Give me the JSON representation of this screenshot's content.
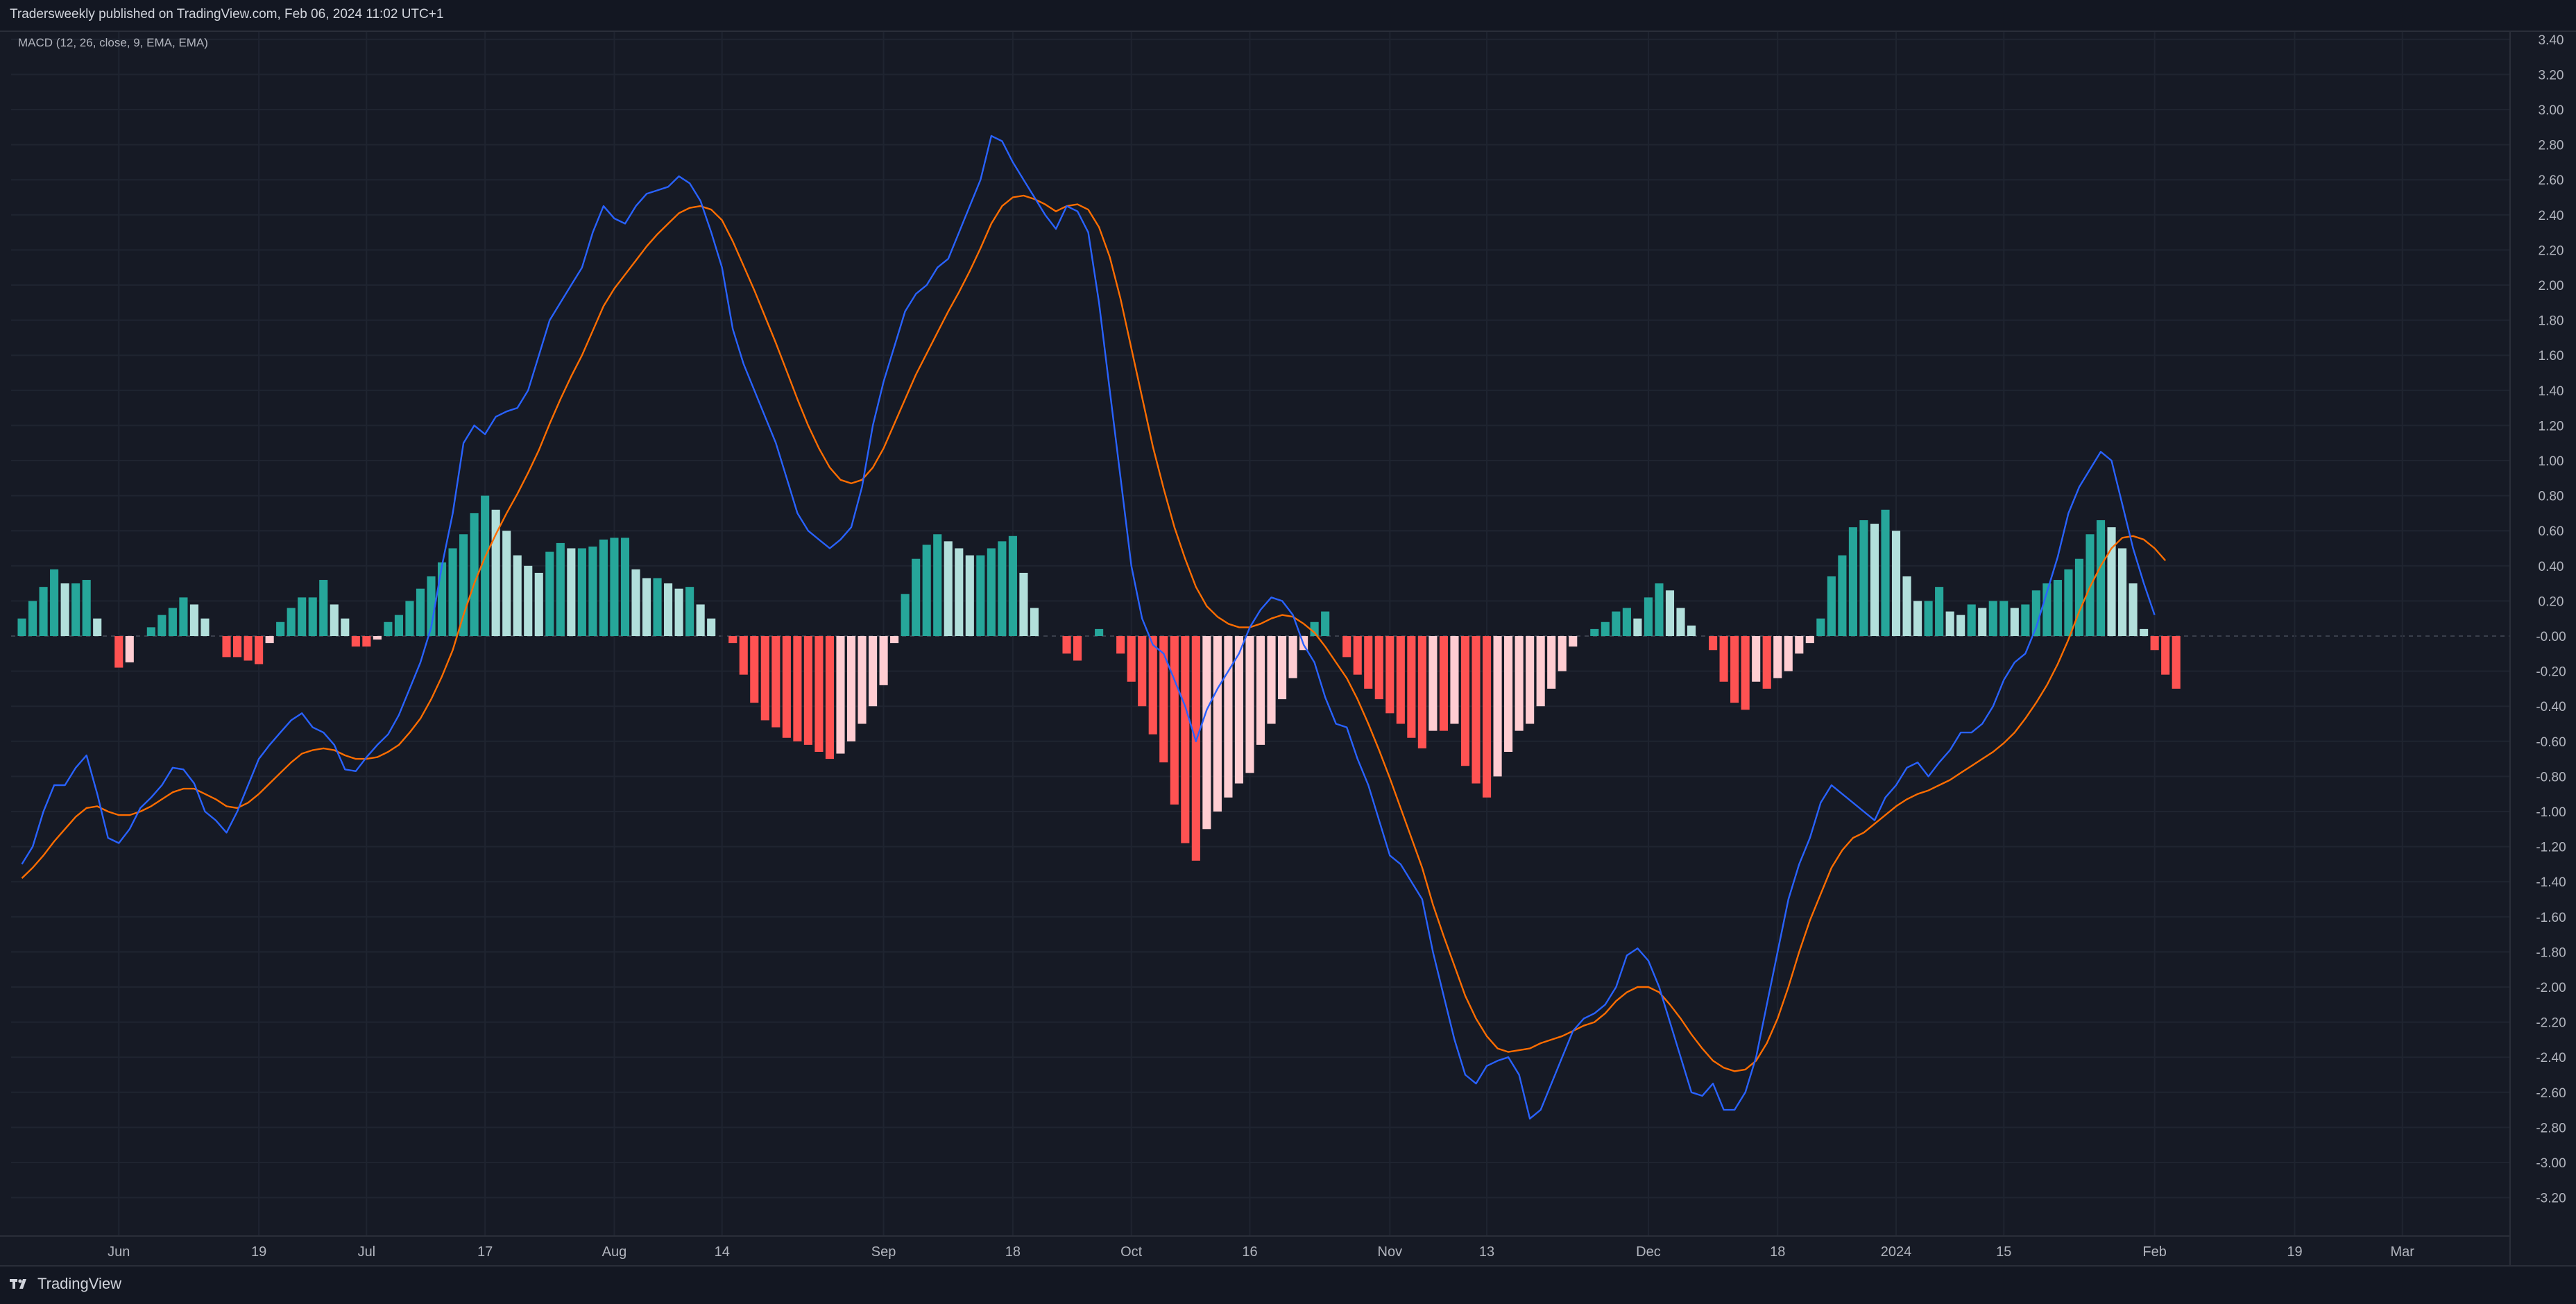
{
  "header": {
    "published": "Tradersweekly published on TradingView.com, Feb 06, 2024 11:02 UTC+1"
  },
  "indicator": {
    "label": "MACD (12, 26, close, 9, EMA, EMA)"
  },
  "footer": {
    "brand": "TradingView"
  },
  "colors": {
    "background": "#161a25",
    "grid": "#1f2430",
    "macd_line": "#2962ff",
    "signal_line": "#ff6d00",
    "hist_pos_strong": "#26a69a",
    "hist_pos_weak": "#b2dfdb",
    "hist_neg_strong": "#ff5252",
    "hist_neg_weak": "#ffcdd2",
    "axis_text": "#b2b5be"
  },
  "chart_data": {
    "type": "line",
    "title": "",
    "ylim": [
      -3.4,
      3.4
    ],
    "y_ticks": [
      "3.40",
      "3.20",
      "3.00",
      "2.80",
      "2.60",
      "2.40",
      "2.20",
      "2.00",
      "1.80",
      "1.60",
      "1.40",
      "1.20",
      "1.00",
      "0.80",
      "0.60",
      "0.40",
      "0.20",
      "-0.00",
      "-0.20",
      "-0.40",
      "-0.60",
      "-0.80",
      "-1.00",
      "-1.20",
      "-1.40",
      "-1.60",
      "-1.80",
      "-2.00",
      "-2.20",
      "-2.40",
      "-2.60",
      "-2.80",
      "-3.00",
      "-3.20"
    ],
    "y_tick_values": [
      3.4,
      3.2,
      3.0,
      2.8,
      2.6,
      2.4,
      2.2,
      2.0,
      1.8,
      1.6,
      1.4,
      1.2,
      1.0,
      0.8,
      0.6,
      0.4,
      0.2,
      0,
      -0.2,
      -0.4,
      -0.6,
      -0.8,
      -1.0,
      -1.2,
      -1.4,
      -1.6,
      -1.8,
      -2.0,
      -2.2,
      -2.4,
      -2.6,
      -2.8,
      -3.0,
      -3.2
    ],
    "x_ticks": [
      "Jun",
      "19",
      "Jul",
      "17",
      "Aug",
      "14",
      "Sep",
      "18",
      "Oct",
      "16",
      "Nov",
      "13",
      "Dec",
      "18",
      "2024",
      "15",
      "Feb",
      "19",
      "Mar"
    ],
    "x_tick_index": [
      9,
      22,
      32,
      43,
      55,
      65,
      80,
      92,
      103,
      114,
      127,
      136,
      151,
      163,
      174,
      184,
      198,
      211,
      221
    ],
    "x_range": [
      -1,
      231
    ],
    "grid": true,
    "series": [
      {
        "name": "",
        "kind": "macd",
        "values": [
          -1.3,
          -1.2,
          -1.0,
          -0.85,
          -0.85,
          -0.75,
          -0.68,
          -0.9,
          -1.15,
          -1.18,
          -1.1,
          -0.98,
          -0.92,
          -0.85,
          -0.75,
          -0.76,
          -0.84,
          -1.0,
          -1.05,
          -1.12,
          -1.0,
          -0.85,
          -0.7,
          -0.62,
          -0.55,
          -0.48,
          -0.44,
          -0.52,
          -0.55,
          -0.62,
          -0.76,
          -0.77,
          -0.69,
          -0.62,
          -0.56,
          -0.45,
          -0.3,
          -0.15,
          0.05,
          0.4,
          0.7,
          1.1,
          1.2,
          1.15,
          1.25,
          1.28,
          1.3,
          1.4,
          1.6,
          1.8,
          1.9,
          2.0,
          2.1,
          2.3,
          2.45,
          2.38,
          2.35,
          2.45,
          2.52,
          2.54,
          2.56,
          2.62,
          2.58,
          2.48,
          2.3,
          2.1,
          1.75,
          1.55,
          1.4,
          1.25,
          1.1,
          0.9,
          0.7,
          0.6,
          0.55,
          0.5,
          0.55,
          0.62,
          0.85,
          1.2,
          1.45,
          1.65,
          1.85,
          1.95,
          2.0,
          2.1,
          2.15,
          2.3,
          2.45,
          2.6,
          2.85,
          2.82,
          2.7,
          2.6,
          2.5,
          2.4,
          2.32,
          2.45,
          2.42,
          2.3,
          1.9,
          1.4,
          0.9,
          0.4,
          0.1,
          -0.05,
          -0.1,
          -0.25,
          -0.4,
          -0.6,
          -0.42,
          -0.3,
          -0.2,
          -0.1,
          0.05,
          0.15,
          0.22,
          0.2,
          0.12,
          -0.05,
          -0.15,
          -0.35,
          -0.5,
          -0.52,
          -0.7,
          -0.85,
          -1.05,
          -1.25,
          -1.3,
          -1.4,
          -1.5,
          -1.8,
          -2.05,
          -2.3,
          -2.5,
          -2.55,
          -2.45,
          -2.42,
          -2.4,
          -2.5,
          -2.75,
          -2.7,
          -2.55,
          -2.4,
          -2.25,
          -2.18,
          -2.15,
          -2.1,
          -2.0,
          -1.82,
          -1.78,
          -1.85,
          -2.0,
          -2.2,
          -2.4,
          -2.6,
          -2.62,
          -2.55,
          -2.7,
          -2.7,
          -2.6,
          -2.4,
          -2.1,
          -1.8,
          -1.5,
          -1.3,
          -1.15,
          -0.95,
          -0.85,
          -0.9,
          -0.95,
          -1.0,
          -1.05,
          -0.92,
          -0.85,
          -0.75,
          -0.72,
          -0.8,
          -0.72,
          -0.65,
          -0.55,
          -0.55,
          -0.5,
          -0.4,
          -0.25,
          -0.15,
          -0.1,
          0.05,
          0.25,
          0.45,
          0.7,
          0.85,
          0.95,
          1.05,
          1.0,
          0.75,
          0.5,
          0.3,
          0.12
        ]
      },
      {
        "name": "",
        "kind": "signal",
        "values": [
          -1.38,
          -1.32,
          -1.25,
          -1.17,
          -1.1,
          -1.03,
          -0.98,
          -0.97,
          -1.0,
          -1.02,
          -1.02,
          -1.0,
          -0.97,
          -0.93,
          -0.89,
          -0.87,
          -0.87,
          -0.9,
          -0.93,
          -0.97,
          -0.98,
          -0.95,
          -0.9,
          -0.84,
          -0.78,
          -0.72,
          -0.67,
          -0.65,
          -0.64,
          -0.65,
          -0.68,
          -0.7,
          -0.7,
          -0.69,
          -0.66,
          -0.62,
          -0.55,
          -0.47,
          -0.36,
          -0.23,
          -0.08,
          0.12,
          0.3,
          0.45,
          0.58,
          0.7,
          0.81,
          0.93,
          1.06,
          1.21,
          1.35,
          1.48,
          1.6,
          1.74,
          1.88,
          1.98,
          2.06,
          2.14,
          2.22,
          2.29,
          2.35,
          2.41,
          2.44,
          2.45,
          2.43,
          2.37,
          2.25,
          2.11,
          1.97,
          1.82,
          1.67,
          1.51,
          1.35,
          1.2,
          1.07,
          0.96,
          0.89,
          0.87,
          0.89,
          0.96,
          1.07,
          1.21,
          1.35,
          1.49,
          1.61,
          1.73,
          1.85,
          1.96,
          2.08,
          2.21,
          2.35,
          2.45,
          2.5,
          2.51,
          2.49,
          2.46,
          2.42,
          2.45,
          2.46,
          2.43,
          2.33,
          2.16,
          1.92,
          1.64,
          1.36,
          1.08,
          0.84,
          0.62,
          0.44,
          0.28,
          0.17,
          0.11,
          0.07,
          0.05,
          0.05,
          0.07,
          0.1,
          0.12,
          0.11,
          0.07,
          0.02,
          -0.06,
          -0.15,
          -0.24,
          -0.36,
          -0.5,
          -0.65,
          -0.81,
          -0.98,
          -1.15,
          -1.32,
          -1.53,
          -1.71,
          -1.88,
          -2.05,
          -2.18,
          -2.28,
          -2.35,
          -2.37,
          -2.36,
          -2.35,
          -2.32,
          -2.3,
          -2.28,
          -2.25,
          -2.22,
          -2.2,
          -2.15,
          -2.08,
          -2.03,
          -2.0,
          -2.0,
          -2.03,
          -2.1,
          -2.18,
          -2.27,
          -2.35,
          -2.42,
          -2.46,
          -2.48,
          -2.47,
          -2.42,
          -2.32,
          -2.18,
          -2.0,
          -1.8,
          -1.62,
          -1.47,
          -1.32,
          -1.22,
          -1.15,
          -1.12,
          -1.07,
          -1.02,
          -0.97,
          -0.93,
          -0.9,
          -0.88,
          -0.85,
          -0.82,
          -0.78,
          -0.74,
          -0.7,
          -0.66,
          -0.61,
          -0.55,
          -0.47,
          -0.38,
          -0.28,
          -0.16,
          -0.02,
          0.14,
          0.28,
          0.4,
          0.5,
          0.56,
          0.57,
          0.55,
          0.5,
          0.43
        ]
      },
      {
        "name": "",
        "kind": "histogram",
        "values": [
          0.1,
          0.2,
          0.28,
          0.38,
          0.3,
          0.3,
          0.32,
          0.1,
          0.0,
          -0.18,
          -0.15,
          0.0,
          0.05,
          0.12,
          0.16,
          0.22,
          0.18,
          0.1,
          0.0,
          -0.12,
          -0.12,
          -0.14,
          -0.16,
          -0.04,
          0.08,
          0.16,
          0.22,
          0.22,
          0.32,
          0.18,
          0.1,
          -0.06,
          -0.06,
          -0.02,
          0.08,
          0.12,
          0.2,
          0.27,
          0.34,
          0.42,
          0.5,
          0.58,
          0.7,
          0.8,
          0.72,
          0.6,
          0.46,
          0.4,
          0.36,
          0.48,
          0.53,
          0.5,
          0.5,
          0.51,
          0.55,
          0.56,
          0.56,
          0.38,
          0.33,
          0.33,
          0.3,
          0.27,
          0.28,
          0.18,
          0.1,
          0.0,
          -0.04,
          -0.22,
          -0.38,
          -0.48,
          -0.52,
          -0.58,
          -0.6,
          -0.62,
          -0.66,
          -0.7,
          -0.67,
          -0.6,
          -0.5,
          -0.4,
          -0.28,
          -0.04,
          0.24,
          0.44,
          0.52,
          0.58,
          0.54,
          0.5,
          0.46,
          0.46,
          0.5,
          0.54,
          0.57,
          0.36,
          0.16,
          0.0,
          0.0,
          -0.1,
          -0.14,
          0.0,
          0.04,
          0.0,
          -0.1,
          -0.26,
          -0.4,
          -0.56,
          -0.72,
          -0.96,
          -1.18,
          -1.28,
          -1.1,
          -1.0,
          -0.92,
          -0.84,
          -0.78,
          -0.62,
          -0.5,
          -0.36,
          -0.24,
          -0.08,
          0.08,
          0.14,
          0.0,
          -0.12,
          -0.22,
          -0.3,
          -0.36,
          -0.44,
          -0.5,
          -0.58,
          -0.64,
          -0.54,
          -0.54,
          -0.5,
          -0.74,
          -0.84,
          -0.92,
          -0.8,
          -0.66,
          -0.54,
          -0.5,
          -0.4,
          -0.3,
          -0.2,
          -0.06,
          0.0,
          0.04,
          0.08,
          0.14,
          0.16,
          0.1,
          0.22,
          0.3,
          0.26,
          0.16,
          0.06,
          0.0,
          -0.08,
          -0.26,
          -0.38,
          -0.42,
          -0.26,
          -0.3,
          -0.24,
          -0.2,
          -0.1,
          -0.04,
          0.1,
          0.34,
          0.46,
          0.62,
          0.66,
          0.64,
          0.72,
          0.6,
          0.34,
          0.2,
          0.2,
          0.28,
          0.14,
          0.12,
          0.18,
          0.16,
          0.2,
          0.2,
          0.16,
          0.18,
          0.26,
          0.3,
          0.32,
          0.38,
          0.44,
          0.58,
          0.66,
          0.62,
          0.5,
          0.3,
          0.04,
          -0.08,
          -0.22,
          -0.3
        ]
      }
    ]
  }
}
